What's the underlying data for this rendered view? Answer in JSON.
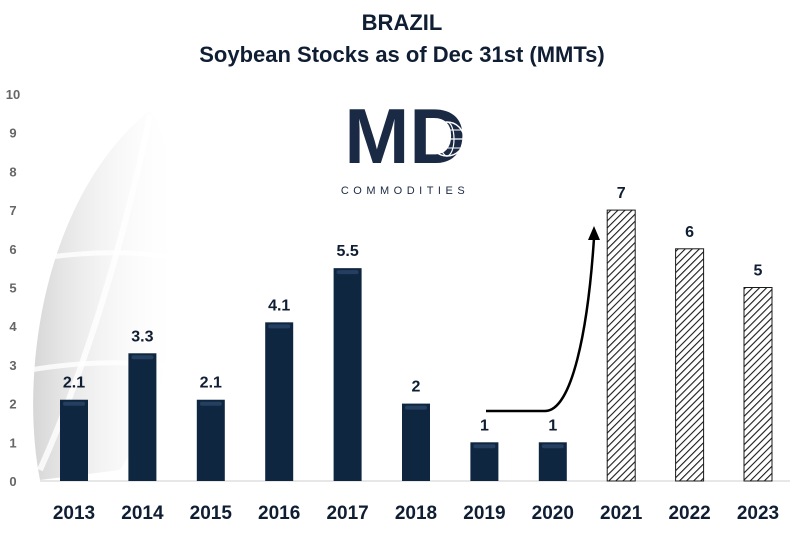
{
  "chart_data": {
    "type": "bar",
    "title": "BRAZIL",
    "subtitle": "Soybean Stocks as of Dec 31st (MMTs)",
    "categories": [
      "2013",
      "2014",
      "2015",
      "2016",
      "2017",
      "2018",
      "2019",
      "2020",
      "2021",
      "2022",
      "2023"
    ],
    "values": [
      2.1,
      3.3,
      2.1,
      4.1,
      5.5,
      2,
      1,
      1,
      7,
      6,
      5
    ],
    "data_labels": [
      "2.1",
      "3.3",
      "2.1",
      "4.1",
      "5.5",
      "2",
      "1",
      "1",
      "7",
      "6",
      "5"
    ],
    "bar_style": [
      "solid",
      "solid",
      "solid",
      "solid",
      "solid",
      "solid",
      "solid",
      "solid",
      "hatched",
      "hatched",
      "hatched"
    ],
    "ylim": [
      0,
      10
    ],
    "yticks": [
      "0",
      "1",
      "2",
      "3",
      "4",
      "5",
      "6",
      "7",
      "8",
      "9",
      "10"
    ],
    "xlabel": "",
    "ylabel": "",
    "grid": false,
    "colors": {
      "bar": "#0f2640",
      "hatch": "#1a1a1a",
      "text": "#0f1e33",
      "ytick": "#666666"
    }
  },
  "logo": {
    "letters": "MD",
    "tagline": "COMMODITIES",
    "color": "#1b2a44"
  }
}
